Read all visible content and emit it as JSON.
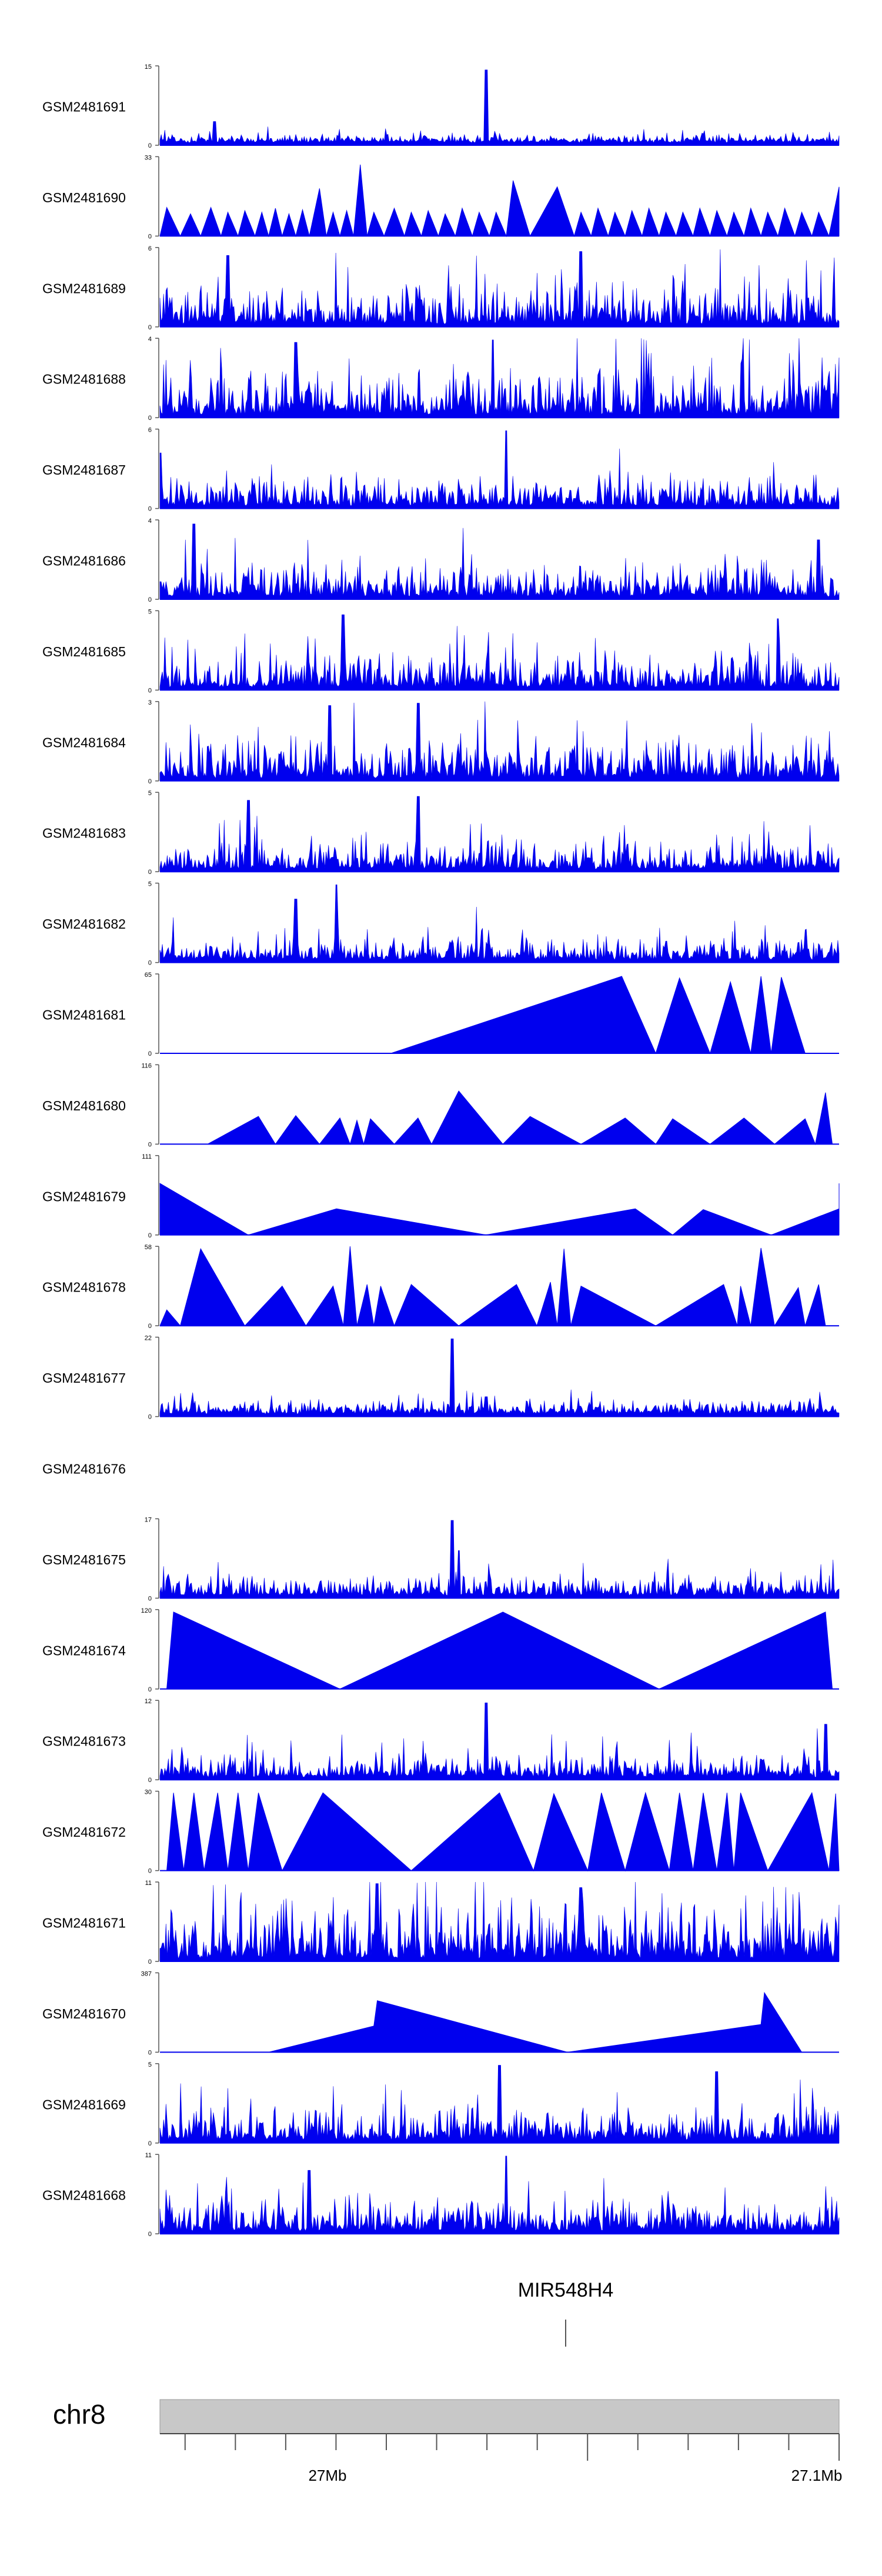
{
  "chart_data": {
    "type": "area",
    "description_title": "",
    "chromosome": "chr8",
    "genomic_axis": {
      "xlim_mb": [
        26.83,
        27.1
      ],
      "major_ticks": [
        {
          "value": 27.0,
          "label": "27Mb"
        },
        {
          "value": 27.1,
          "label": "27.1Mb"
        }
      ]
    },
    "gene": {
      "name": "MIR548H4",
      "position_mb": 27.0
    }
  },
  "tracks": [
    {
      "name": "GSM2481691",
      "ymax": "15",
      "zero": "0",
      "style": "noise",
      "base": 0.08,
      "seed": 91,
      "peaks": [
        [
          0.48,
          0.95
        ],
        [
          0.08,
          0.3
        ]
      ]
    },
    {
      "name": "GSM2481690",
      "ymax": "33",
      "zero": "0",
      "style": "tri",
      "vertices": [
        [
          0.0,
          0
        ],
        [
          0.01,
          0.36
        ],
        [
          0.03,
          0
        ],
        [
          0.045,
          0.28
        ],
        [
          0.06,
          0
        ],
        [
          0.075,
          0.36
        ],
        [
          0.09,
          0
        ],
        [
          0.1,
          0.3
        ],
        [
          0.115,
          0
        ],
        [
          0.125,
          0.32
        ],
        [
          0.14,
          0
        ],
        [
          0.15,
          0.3
        ],
        [
          0.16,
          0
        ],
        [
          0.17,
          0.35
        ],
        [
          0.18,
          0
        ],
        [
          0.19,
          0.28
        ],
        [
          0.2,
          0
        ],
        [
          0.21,
          0.33
        ],
        [
          0.22,
          0
        ],
        [
          0.235,
          0.6
        ],
        [
          0.245,
          0
        ],
        [
          0.255,
          0.3
        ],
        [
          0.265,
          0
        ],
        [
          0.275,
          0.32
        ],
        [
          0.285,
          0
        ],
        [
          0.295,
          0.9
        ],
        [
          0.305,
          0
        ],
        [
          0.315,
          0.3
        ],
        [
          0.33,
          0
        ],
        [
          0.345,
          0.35
        ],
        [
          0.36,
          0
        ],
        [
          0.37,
          0.3
        ],
        [
          0.385,
          0
        ],
        [
          0.395,
          0.32
        ],
        [
          0.41,
          0
        ],
        [
          0.42,
          0.28
        ],
        [
          0.435,
          0
        ],
        [
          0.445,
          0.35
        ],
        [
          0.46,
          0
        ],
        [
          0.47,
          0.3
        ],
        [
          0.485,
          0
        ],
        [
          0.495,
          0.3
        ],
        [
          0.51,
          0
        ],
        [
          0.52,
          0.7
        ],
        [
          0.545,
          0
        ],
        [
          0.585,
          0.62
        ],
        [
          0.61,
          0
        ],
        [
          0.62,
          0.3
        ],
        [
          0.635,
          0
        ],
        [
          0.645,
          0.35
        ],
        [
          0.66,
          0
        ],
        [
          0.67,
          0.3
        ],
        [
          0.685,
          0
        ],
        [
          0.695,
          0.32
        ],
        [
          0.71,
          0
        ],
        [
          0.72,
          0.35
        ],
        [
          0.735,
          0
        ],
        [
          0.745,
          0.3
        ],
        [
          0.76,
          0
        ],
        [
          0.77,
          0.3
        ],
        [
          0.785,
          0
        ],
        [
          0.795,
          0.35
        ],
        [
          0.81,
          0
        ],
        [
          0.82,
          0.32
        ],
        [
          0.835,
          0
        ],
        [
          0.845,
          0.3
        ],
        [
          0.86,
          0
        ],
        [
          0.87,
          0.35
        ],
        [
          0.885,
          0
        ],
        [
          0.895,
          0.3
        ],
        [
          0.91,
          0
        ],
        [
          0.92,
          0.35
        ],
        [
          0.935,
          0
        ],
        [
          0.945,
          0.3
        ],
        [
          0.96,
          0
        ],
        [
          0.97,
          0.3
        ],
        [
          0.985,
          0
        ],
        [
          1.0,
          0.62
        ],
        [
          1.0,
          0
        ]
      ]
    },
    {
      "name": "GSM2481689",
      "ymax": "6",
      "zero": "0",
      "style": "noise",
      "base": 0.35,
      "seed": 89,
      "peaks": [
        [
          0.1,
          0.9
        ],
        [
          0.62,
          0.95
        ]
      ]
    },
    {
      "name": "GSM2481688",
      "ymax": "4",
      "zero": "0",
      "style": "noise",
      "base": 0.45,
      "seed": 88,
      "peaks": [
        [
          0.2,
          0.95
        ],
        [
          0.49,
          0.98
        ]
      ]
    },
    {
      "name": "GSM2481687",
      "ymax": "6",
      "zero": "0",
      "style": "noise",
      "base": 0.25,
      "seed": 87,
      "peaks": [
        [
          0.51,
          0.98
        ],
        [
          0.0,
          0.7
        ]
      ]
    },
    {
      "name": "GSM2481686",
      "ymax": "4",
      "zero": "0",
      "style": "noise",
      "base": 0.3,
      "seed": 86,
      "peaks": [
        [
          0.05,
          0.95
        ],
        [
          0.97,
          0.75
        ]
      ]
    },
    {
      "name": "GSM2481685",
      "ymax": "5",
      "zero": "0",
      "style": "noise",
      "base": 0.3,
      "seed": 85,
      "peaks": [
        [
          0.27,
          0.95
        ],
        [
          0.91,
          0.9
        ]
      ]
    },
    {
      "name": "GSM2481684",
      "ymax": "3",
      "zero": "0",
      "style": "noise",
      "base": 0.35,
      "seed": 84,
      "peaks": [
        [
          0.25,
          0.95
        ],
        [
          0.38,
          0.98
        ]
      ]
    },
    {
      "name": "GSM2481683",
      "ymax": "5",
      "zero": "0",
      "style": "noise",
      "base": 0.25,
      "seed": 83,
      "peaks": [
        [
          0.38,
          0.95
        ],
        [
          0.13,
          0.9
        ]
      ]
    },
    {
      "name": "GSM2481682",
      "ymax": "5",
      "zero": "0",
      "style": "noise",
      "base": 0.2,
      "seed": 82,
      "peaks": [
        [
          0.26,
          0.98
        ],
        [
          0.2,
          0.8
        ]
      ]
    },
    {
      "name": "GSM2481681",
      "ymax": "65",
      "zero": "0",
      "style": "tri",
      "vertices": [
        [
          0.34,
          0
        ],
        [
          0.68,
          0.97
        ],
        [
          0.73,
          0
        ],
        [
          0.765,
          0.95
        ],
        [
          0.81,
          0
        ],
        [
          0.84,
          0.9
        ],
        [
          0.87,
          0
        ],
        [
          0.885,
          0.97
        ],
        [
          0.9,
          0
        ],
        [
          0.915,
          0.96
        ],
        [
          0.95,
          0
        ]
      ]
    },
    {
      "name": "GSM2481680",
      "ymax": "116",
      "zero": "0",
      "style": "tri",
      "vertices": [
        [
          0.07,
          0
        ],
        [
          0.145,
          0.35
        ],
        [
          0.17,
          0
        ],
        [
          0.2,
          0.36
        ],
        [
          0.235,
          0
        ],
        [
          0.265,
          0.33
        ],
        [
          0.28,
          0
        ],
        [
          0.29,
          0.3
        ],
        [
          0.3,
          0
        ],
        [
          0.31,
          0.32
        ],
        [
          0.345,
          0
        ],
        [
          0.38,
          0.33
        ],
        [
          0.4,
          0
        ],
        [
          0.44,
          0.67
        ],
        [
          0.505,
          0
        ],
        [
          0.545,
          0.35
        ],
        [
          0.62,
          0
        ],
        [
          0.685,
          0.33
        ],
        [
          0.73,
          0
        ],
        [
          0.755,
          0.32
        ],
        [
          0.81,
          0
        ],
        [
          0.86,
          0.33
        ],
        [
          0.905,
          0
        ],
        [
          0.95,
          0.32
        ],
        [
          0.965,
          0
        ],
        [
          0.98,
          0.65
        ],
        [
          0.99,
          0
        ]
      ]
    },
    {
      "name": "GSM2481679",
      "ymax": "111",
      "zero": "0",
      "style": "tri",
      "vertices": [
        [
          0.0,
          0
        ],
        [
          0.0,
          0.65
        ],
        [
          0.13,
          0
        ],
        [
          0.26,
          0.33
        ],
        [
          0.48,
          0
        ],
        [
          0.7,
          0.33
        ],
        [
          0.755,
          0
        ],
        [
          0.8,
          0.32
        ],
        [
          0.9,
          0
        ],
        [
          1.0,
          0.33
        ],
        [
          1.0,
          0.65
        ],
        [
          1.0,
          0
        ]
      ]
    },
    {
      "name": "GSM2481678",
      "ymax": "58",
      "zero": "0",
      "style": "tri",
      "vertices": [
        [
          0.0,
          0
        ],
        [
          0.01,
          0.2
        ],
        [
          0.03,
          0
        ],
        [
          0.06,
          0.97
        ],
        [
          0.125,
          0
        ],
        [
          0.18,
          0.5
        ],
        [
          0.215,
          0
        ],
        [
          0.255,
          0.5
        ],
        [
          0.27,
          0
        ],
        [
          0.28,
          1.0
        ],
        [
          0.29,
          0
        ],
        [
          0.305,
          0.52
        ],
        [
          0.315,
          0
        ],
        [
          0.325,
          0.5
        ],
        [
          0.345,
          0
        ],
        [
          0.37,
          0.52
        ],
        [
          0.44,
          0
        ],
        [
          0.525,
          0.52
        ],
        [
          0.555,
          0
        ],
        [
          0.575,
          0.55
        ],
        [
          0.585,
          0
        ],
        [
          0.595,
          0.97
        ],
        [
          0.605,
          0
        ],
        [
          0.62,
          0.5
        ],
        [
          0.73,
          0
        ],
        [
          0.83,
          0.52
        ],
        [
          0.85,
          0
        ],
        [
          0.855,
          0.5
        ],
        [
          0.87,
          0
        ],
        [
          0.885,
          0.98
        ],
        [
          0.905,
          0
        ],
        [
          0.94,
          0.48
        ],
        [
          0.95,
          0
        ],
        [
          0.97,
          0.52
        ],
        [
          0.98,
          0
        ]
      ]
    },
    {
      "name": "GSM2481677",
      "ymax": "22",
      "zero": "0",
      "style": "noise",
      "base": 0.12,
      "seed": 77,
      "peaks": [
        [
          0.43,
          0.98
        ],
        [
          0.48,
          0.25
        ]
      ]
    },
    {
      "name": "GSM2481676",
      "style": "empty"
    },
    {
      "name": "GSM2481675",
      "ymax": "17",
      "zero": "0",
      "style": "noise",
      "base": 0.17,
      "seed": 75,
      "peaks": [
        [
          0.43,
          0.98
        ],
        [
          0.44,
          0.6
        ]
      ]
    },
    {
      "name": "GSM2481674",
      "ymax": "120",
      "zero": "0",
      "style": "tri",
      "vertices": [
        [
          0.01,
          0
        ],
        [
          0.02,
          0.97
        ],
        [
          0.265,
          0
        ],
        [
          0.505,
          0.97
        ],
        [
          0.735,
          0
        ],
        [
          0.98,
          0.97
        ],
        [
          0.99,
          0
        ]
      ]
    },
    {
      "name": "GSM2481673",
      "ymax": "12",
      "zero": "0",
      "style": "noise",
      "base": 0.22,
      "seed": 73,
      "peaks": [
        [
          0.48,
          0.97
        ],
        [
          0.98,
          0.7
        ]
      ]
    },
    {
      "name": "GSM2481672",
      "ymax": "30",
      "zero": "0",
      "style": "tri",
      "vertices": [
        [
          0.01,
          0
        ],
        [
          0.02,
          0.98
        ],
        [
          0.035,
          0
        ],
        [
          0.05,
          0.98
        ],
        [
          0.065,
          0
        ],
        [
          0.085,
          0.98
        ],
        [
          0.1,
          0
        ],
        [
          0.115,
          0.98
        ],
        [
          0.13,
          0
        ],
        [
          0.145,
          0.98
        ],
        [
          0.18,
          0
        ],
        [
          0.24,
          0.98
        ],
        [
          0.37,
          0
        ],
        [
          0.5,
          0.98
        ],
        [
          0.55,
          0
        ],
        [
          0.58,
          0.97
        ],
        [
          0.63,
          0
        ],
        [
          0.65,
          0.98
        ],
        [
          0.685,
          0
        ],
        [
          0.715,
          0.98
        ],
        [
          0.75,
          0
        ],
        [
          0.765,
          0.98
        ],
        [
          0.785,
          0
        ],
        [
          0.8,
          0.98
        ],
        [
          0.82,
          0
        ],
        [
          0.835,
          0.98
        ],
        [
          0.845,
          0
        ],
        [
          0.855,
          0.98
        ],
        [
          0.895,
          0
        ],
        [
          0.96,
          0.98
        ],
        [
          0.985,
          0
        ],
        [
          0.995,
          0.97
        ],
        [
          1.0,
          0
        ]
      ]
    },
    {
      "name": "GSM2481671",
      "ymax": "11",
      "zero": "0",
      "style": "noise",
      "base": 0.5,
      "seed": 71,
      "peaks": [
        [
          0.32,
          0.98
        ],
        [
          0.62,
          0.93
        ]
      ]
    },
    {
      "name": "GSM2481670",
      "ymax": "387",
      "zero": "0",
      "style": "tri",
      "vertices": [
        [
          0.16,
          0
        ],
        [
          0.315,
          0.33
        ],
        [
          0.32,
          0.65
        ],
        [
          0.6,
          0
        ],
        [
          0.885,
          0.35
        ],
        [
          0.89,
          0.75
        ],
        [
          0.945,
          0
        ]
      ]
    },
    {
      "name": "GSM2481669",
      "ymax": "5",
      "zero": "0",
      "style": "noise",
      "base": 0.3,
      "seed": 69,
      "peaks": [
        [
          0.5,
          0.98
        ],
        [
          0.82,
          0.9
        ]
      ]
    },
    {
      "name": "GSM2481668",
      "ymax": "11",
      "zero": "0",
      "style": "noise",
      "base": 0.3,
      "seed": 68,
      "peaks": [
        [
          0.51,
          0.98
        ],
        [
          0.22,
          0.8
        ]
      ]
    }
  ],
  "colors": {
    "fill": "#0000ee",
    "ideogram": "#c8c8c8",
    "axis": "#444444"
  }
}
